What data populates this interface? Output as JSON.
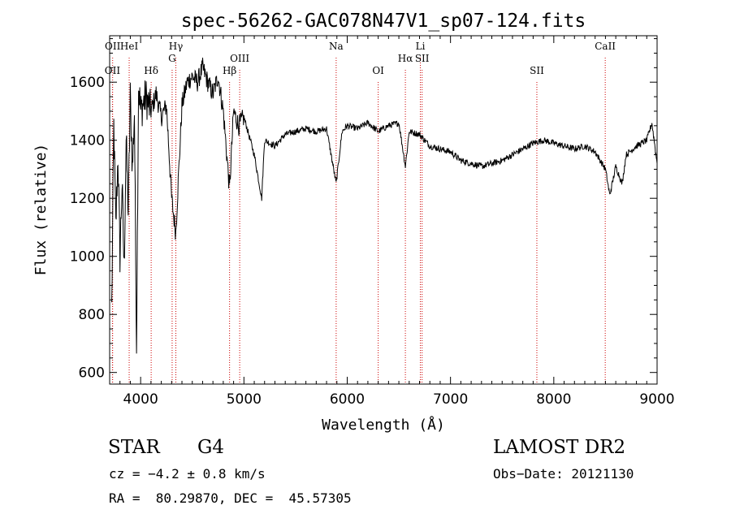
{
  "chart_data": {
    "type": "line",
    "title": "spec-56262-GAC078N47V1_sp07-124.fits",
    "xlabel": "Wavelength (Å)",
    "ylabel": "Flux (relative)",
    "xlim": [
      3700,
      9000
    ],
    "ylim": [
      560,
      1760
    ],
    "x_ticks": [
      4000,
      5000,
      6000,
      7000,
      8000,
      9000
    ],
    "y_ticks": [
      600,
      800,
      1000,
      1200,
      1400,
      1600
    ],
    "grid": false,
    "line_color": "#000000",
    "marker_color": "#cc0000",
    "series": [
      {
        "x": [
          3720,
          3740,
          3760,
          3780,
          3800,
          3820,
          3840,
          3860,
          3880,
          3900,
          3920,
          3940,
          3960,
          3980,
          4000,
          4050,
          4100,
          4150,
          4200,
          4250,
          4300,
          4340,
          4400,
          4450,
          4500,
          4550,
          4600,
          4650,
          4700,
          4750,
          4800,
          4861,
          4900,
          4950,
          5000,
          5100,
          5172,
          5200,
          5300,
          5400,
          5500,
          5600,
          5700,
          5800,
          5893,
          5950,
          6000,
          6100,
          6200,
          6300,
          6400,
          6500,
          6563,
          6600,
          6700,
          6750,
          6800,
          6900,
          7000,
          7100,
          7200,
          7300,
          7400,
          7500,
          7600,
          7700,
          7800,
          7900,
          8000,
          8100,
          8200,
          8300,
          8400,
          8500,
          8542,
          8600,
          8662,
          8700,
          8800,
          8900,
          8950,
          9000
        ],
        "y": [
          820,
          1450,
          1100,
          1350,
          1000,
          1250,
          950,
          1400,
          1150,
          1550,
          1300,
          1500,
          700,
          1600,
          1500,
          1550,
          1500,
          1560,
          1480,
          1520,
          1200,
          1080,
          1520,
          1600,
          1620,
          1600,
          1650,
          1600,
          1560,
          1620,
          1500,
          1230,
          1500,
          1450,
          1480,
          1350,
          1200,
          1400,
          1380,
          1420,
          1430,
          1440,
          1430,
          1440,
          1250,
          1430,
          1450,
          1440,
          1460,
          1430,
          1450,
          1460,
          1310,
          1430,
          1420,
          1400,
          1380,
          1370,
          1360,
          1330,
          1320,
          1310,
          1320,
          1330,
          1350,
          1370,
          1390,
          1400,
          1390,
          1380,
          1370,
          1380,
          1360,
          1300,
          1210,
          1310,
          1250,
          1350,
          1380,
          1400,
          1460,
          1320
        ]
      }
    ],
    "lines": [
      {
        "label": "OII",
        "x": 3727,
        "row": 1
      },
      {
        "label": "OII",
        "x": 3729,
        "row": 0
      },
      {
        "label": "HeI",
        "x": 3889,
        "row": 0
      },
      {
        "label": "Hδ",
        "x": 4102,
        "row": 1
      },
      {
        "label": "Hγ",
        "x": 4341,
        "row": 0
      },
      {
        "label": "G",
        "x": 4305,
        "row": 0.5
      },
      {
        "label": "Hβ",
        "x": 4861,
        "row": 1
      },
      {
        "label": "OIII",
        "x": 4959,
        "row": 0.5
      },
      {
        "label": "Na",
        "x": 5893,
        "row": 0
      },
      {
        "label": "OI",
        "x": 6300,
        "row": 1
      },
      {
        "label": "Hα",
        "x": 6563,
        "row": 0.5
      },
      {
        "label": "Li",
        "x": 6708,
        "row": 0
      },
      {
        "label": "SII",
        "x": 6725,
        "row": 0.5
      },
      {
        "label": "SII",
        "x": 7836,
        "row": 1
      },
      {
        "label": "CaII",
        "x": 8498,
        "row": 0
      }
    ]
  },
  "info": {
    "class": "STAR",
    "subclass": "G4",
    "survey": "LAMOST DR2",
    "cz": "cz = −4.2 ± 0.8 km/s",
    "obs_date": "Obs−Date: 20121130",
    "radec": "RA =  80.29870, DEC =  45.57305"
  }
}
